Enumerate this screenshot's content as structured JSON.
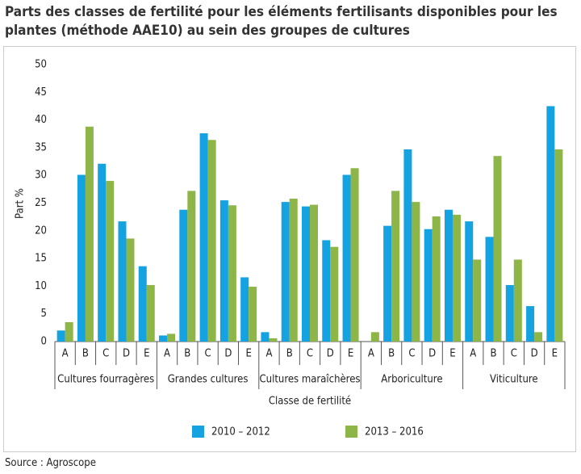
{
  "chart_data": {
    "type": "bar",
    "title": "Parts des classes de fertilité pour les éléments fertilisants disponibles pour les plantes (méthode AAE10) au sein des groupes de cultures",
    "x_label": "Classe de fertilité",
    "y_label": "Part %",
    "source": "Source : Agroscope",
    "category_groups": [
      "Cultures fourragères",
      "Grandes cultures",
      "Cultures maraîchères",
      "Arboriculture",
      "Viticulture"
    ],
    "categories": [
      "A",
      "B",
      "C",
      "D",
      "E",
      "A",
      "B",
      "C",
      "D",
      "E",
      "A",
      "B",
      "C",
      "D",
      "E",
      "A",
      "B",
      "C",
      "D",
      "E",
      "A",
      "B",
      "C",
      "D",
      "E"
    ],
    "series": [
      {
        "name": "2010 – 2012",
        "color": "#14a2e0",
        "values": [
          2.0,
          30.1,
          32.1,
          21.7,
          13.6,
          1.1,
          23.8,
          37.6,
          25.5,
          11.6,
          1.7,
          25.2,
          24.4,
          18.3,
          30.1,
          0,
          20.9,
          34.7,
          20.3,
          23.8,
          21.7,
          18.9,
          10.2,
          6.4,
          42.5
        ]
      },
      {
        "name": "2013 – 2016",
        "color": "#8db548",
        "values": [
          3.5,
          38.8,
          29.0,
          18.6,
          10.2,
          1.4,
          27.2,
          36.4,
          24.6,
          9.9,
          0.6,
          25.8,
          24.7,
          17.1,
          31.3,
          1.7,
          27.2,
          25.2,
          22.6,
          22.9,
          14.8,
          33.5,
          14.8,
          1.7,
          34.7
        ]
      }
    ],
    "ylim": [
      0,
      50
    ],
    "yticks": [
      0,
      5,
      10,
      15,
      20,
      25,
      30,
      35,
      40,
      45,
      50
    ],
    "grid": false
  }
}
